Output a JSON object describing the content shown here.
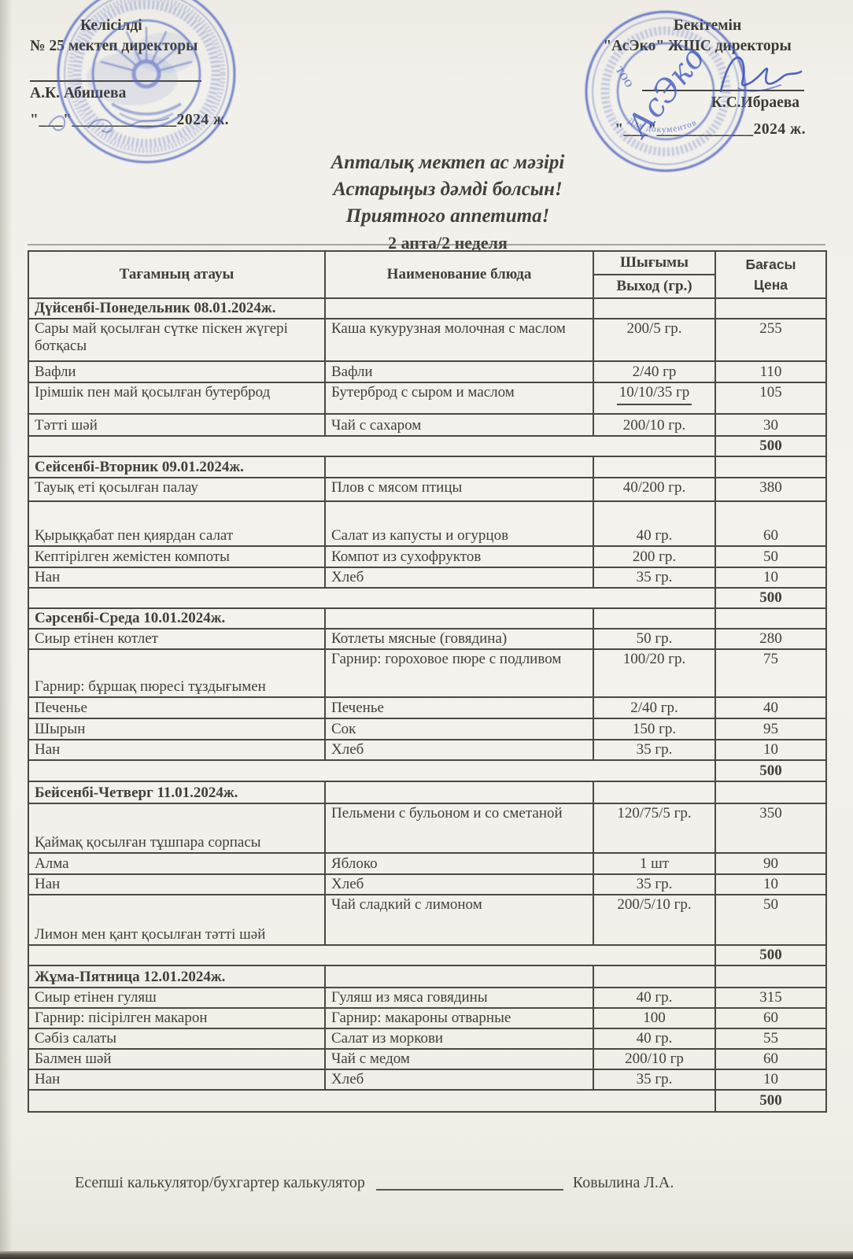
{
  "approval_left": {
    "status": "Келісілді",
    "org": "№ 25 мектеп директоры",
    "name": "А.К. Абишева",
    "date": "\"___\"_____________2024 ж."
  },
  "approval_right": {
    "status": "Бекітемін",
    "org": "\"АсЭко\" ЖШС директоры",
    "name": "К.С.Ибраева",
    "date": "\"___\"____________2024 ж."
  },
  "title": {
    "line1": "Апталық мектеп ас мәзірі",
    "line2": "Астарыңыз дәмді болсын!",
    "line3": "Приятного аппетита!",
    "line4": "2 апта/2 неделя"
  },
  "table_header": {
    "col1": "Тағамның атауы",
    "col2": "Наименование блюда",
    "col3_top": "Шығымы",
    "col3_bottom": "Выход (гр.)",
    "col4_line1": "Бағасы",
    "col4_line2": "Цена"
  },
  "menu": {
    "sections": [
      {
        "day": "Дүйсенбі-Понедельник 08.01.2024ж.",
        "rows": [
          [
            "Сары май қосылған сүтке піскен жүгері ботқасы",
            "Каша кукурузная молочная с маслом",
            "200/5 гр.",
            "255"
          ],
          [
            "Вафли",
            "Вафли",
            "2/40 гр",
            "110"
          ],
          [
            "Ірімшік пен май қосылған бутерброд",
            "Бутерброд с сыром и маслом",
            "10/10/35 гр",
            "105"
          ],
          [
            "Тәтті шәй",
            "Чай с сахаром",
            "200/10 гр.",
            "30"
          ]
        ],
        "total": "500"
      },
      {
        "day": "Сейсенбі-Вторник 09.01.2024ж.",
        "rows": [
          [
            "Тауық еті қосылған палау",
            "Плов с мясом птицы",
            "40/200 гр.",
            "380"
          ],
          [
            "Қырыққабат пен қиярдан салат",
            "Салат из капусты и огурцов",
            "40 гр.",
            "60"
          ],
          [
            "Кептірілген жемістен компоты",
            "Компот из сухофруктов",
            "200 гр.",
            "50"
          ],
          [
            "Нан",
            "Хлеб",
            "35 гр.",
            "10"
          ]
        ],
        "total": "500"
      },
      {
        "day": "Сәрсенбі-Среда 10.01.2024ж.",
        "rows": [
          [
            "Сиыр етінен котлет",
            "Котлеты мясные (говядина)",
            "50 гр.",
            "280"
          ],
          [
            "Гарнир: бұршақ пюресі тұздығымен",
            "Гарнир: гороховое пюре с подливом",
            "100/20 гр.",
            "75"
          ],
          [
            "Печенье",
            "Печенье",
            "2/40 гр.",
            "40"
          ],
          [
            "Шырын",
            "Сок",
            "150 гр.",
            "95"
          ],
          [
            "Нан",
            "Хлеб",
            "35 гр.",
            "10"
          ]
        ],
        "total": "500"
      },
      {
        "day": "Бейсенбі-Четверг 11.01.2024ж.",
        "rows": [
          [
            "Қаймақ қосылған тұшпара сорпасы",
            "Пельмени с бульоном и со сметаной",
            "120/75/5 гр.",
            "350"
          ],
          [
            "Алма",
            "Яблоко",
            "1 шт",
            "90"
          ],
          [
            "Нан",
            "Хлеб",
            "35 гр.",
            "10"
          ],
          [
            "Лимон мен қант қосылған тәтті шәй",
            "Чай сладкий с лимоном",
            "200/5/10 гр.",
            "50"
          ]
        ],
        "total": "500"
      },
      {
        "day": "Жұма-Пятница 12.01.2024ж.",
        "rows": [
          [
            "Сиыр етінен гуляш",
            "Гуляш из мяса говядины",
            "40 гр.",
            "315"
          ],
          [
            "Гарнир: пісірілген макарон",
            "Гарнир: макароны отварные",
            "100",
            "60"
          ],
          [
            "Сәбіз салаты",
            "Салат из моркови",
            "40 гр.",
            "55"
          ],
          [
            "Балмен шәй",
            "Чай с медом",
            "200/10 гр",
            "60"
          ],
          [
            "Нан",
            "Хлеб",
            "35 гр.",
            "10"
          ]
        ],
        "total": "500"
      }
    ]
  },
  "footer": {
    "label": "Есепші калькулятор/бухгартер калькулятор",
    "name": "Ковылина Л.А."
  },
  "stamps": {
    "right": {
      "org_script": "АсЭко",
      "org_form": "ТОО",
      "purpose": "Для документов"
    }
  }
}
